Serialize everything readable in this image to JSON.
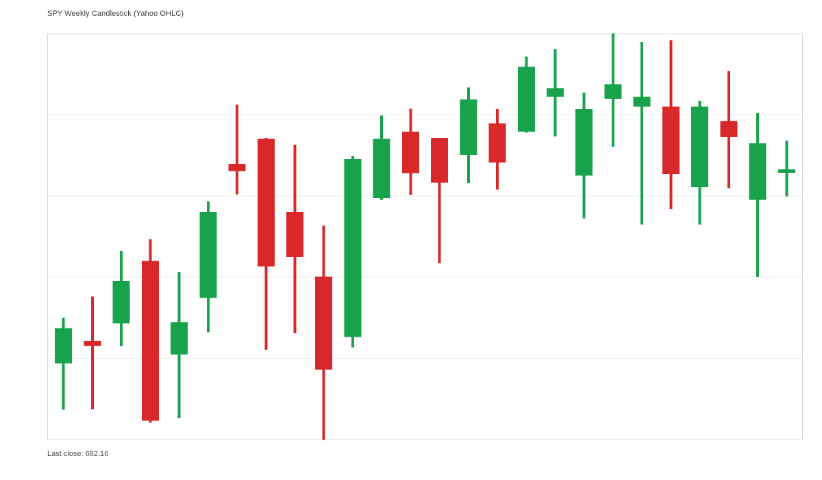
{
  "title": "SPY Weekly Candlestick (Yahoo OHLC)",
  "footer": {
    "last_close_text": "Last close: 682.16",
    "last_close_value": "682.16"
  },
  "chart_data": {
    "type": "candlestick",
    "title": "SPY Weekly Candlestick (Yahoo OHLC)",
    "xlabel": "",
    "ylabel": "",
    "legend": "none",
    "grid": "horizontal-only",
    "x_axis": {
      "labels_visible": false,
      "categories": [
        1,
        2,
        3,
        4,
        5,
        6,
        7,
        8,
        9,
        10,
        11,
        12,
        13,
        14,
        15,
        16,
        17,
        18,
        19,
        20,
        21,
        22,
        23,
        24,
        25,
        26
      ],
      "unit": "week"
    },
    "y_axis": {
      "labels_visible": false,
      "ylim": [
        549.0,
        748.7
      ],
      "gridline_values": [
        589,
        629,
        669,
        709
      ]
    },
    "last_close": 682.16,
    "colors": {
      "up": "#18a24c",
      "down": "#d9282a",
      "grid": "#ececec",
      "frame": "#d6d6d6",
      "background": "#ffffff"
    },
    "candles": [
      {
        "open": 586.5,
        "high": 609.0,
        "low": 563.7,
        "close": 603.9
      },
      {
        "open": 597.7,
        "high": 619.4,
        "low": 563.9,
        "close": 595.2
      },
      {
        "open": 606.3,
        "high": 642.0,
        "low": 595.0,
        "close": 627.1
      },
      {
        "open": 637.1,
        "high": 647.7,
        "low": 557.2,
        "close": 558.3
      },
      {
        "open": 590.9,
        "high": 631.5,
        "low": 559.4,
        "close": 606.7
      },
      {
        "open": 618.7,
        "high": 666.5,
        "low": 601.8,
        "close": 661.1
      },
      {
        "open": 684.8,
        "high": 714.0,
        "low": 669.8,
        "close": 681.3
      },
      {
        "open": 697.1,
        "high": 697.7,
        "low": 593.2,
        "close": 634.3
      },
      {
        "open": 661.1,
        "high": 694.3,
        "low": 601.4,
        "close": 638.8
      },
      {
        "open": 629.2,
        "high": 654.4,
        "low": 548.9,
        "close": 583.4
      },
      {
        "open": 599.5,
        "high": 688.7,
        "low": 594.4,
        "close": 687.2
      },
      {
        "open": 667.9,
        "high": 708.6,
        "low": 667.1,
        "close": 697.1
      },
      {
        "open": 700.8,
        "high": 712.1,
        "low": 669.6,
        "close": 680.2
      },
      {
        "open": 697.7,
        "high": 697.7,
        "low": 635.8,
        "close": 675.5
      },
      {
        "open": 689.3,
        "high": 722.5,
        "low": 675.4,
        "close": 716.6
      },
      {
        "open": 704.7,
        "high": 711.8,
        "low": 672.1,
        "close": 685.5
      },
      {
        "open": 700.8,
        "high": 737.7,
        "low": 700.2,
        "close": 732.6
      },
      {
        "open": 718.0,
        "high": 741.4,
        "low": 698.3,
        "close": 722.1
      },
      {
        "open": 679.1,
        "high": 719.9,
        "low": 657.9,
        "close": 711.8
      },
      {
        "open": 716.9,
        "high": 749.2,
        "low": 693.2,
        "close": 724.0
      },
      {
        "open": 713.1,
        "high": 745.0,
        "low": 654.9,
        "close": 718.0
      },
      {
        "open": 713.1,
        "high": 745.8,
        "low": 662.5,
        "close": 679.7
      },
      {
        "open": 673.3,
        "high": 715.9,
        "low": 654.9,
        "close": 713.1
      },
      {
        "open": 705.9,
        "high": 730.7,
        "low": 672.9,
        "close": 698.0
      },
      {
        "open": 667.1,
        "high": 709.8,
        "low": 629.1,
        "close": 694.9
      },
      {
        "open": 682.16,
        "high": 696.3,
        "low": 668.8,
        "close": 682.16
      }
    ]
  }
}
